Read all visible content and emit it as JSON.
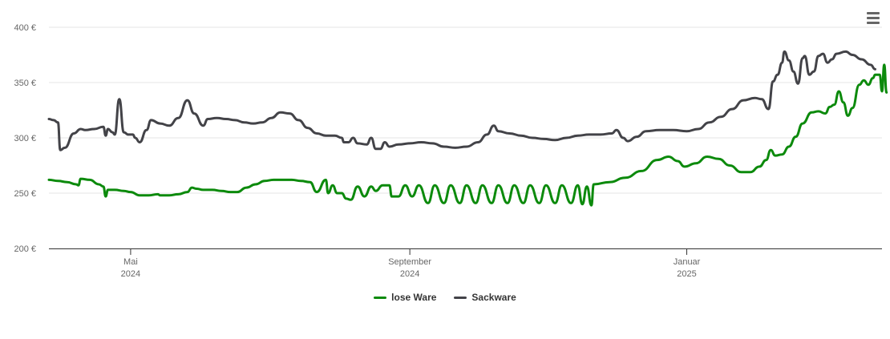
{
  "chart_data": {
    "type": "line",
    "title": "",
    "xlabel": "",
    "ylabel": "",
    "ylim": [
      200,
      400
    ],
    "y_ticks": [
      {
        "value": 200,
        "label": "200 €"
      },
      {
        "value": 250,
        "label": "250 €"
      },
      {
        "value": 300,
        "label": "300 €"
      },
      {
        "value": 350,
        "label": "350 €"
      },
      {
        "value": 400,
        "label": "400 €"
      }
    ],
    "x_range": [
      "2024-03-26",
      "2025-03-28"
    ],
    "x_ticks": [
      {
        "date": "2024-05-01",
        "month": "Mai",
        "year": "2024"
      },
      {
        "date": "2024-09-01",
        "month": "September",
        "year": "2024"
      },
      {
        "date": "2025-01-01",
        "month": "Januar",
        "year": "2025"
      }
    ],
    "grid": true,
    "legend_position": "bottom",
    "series": [
      {
        "name": "lose Ware",
        "color": "#0c8a0c",
        "points": [
          [
            "2024-03-26",
            262
          ],
          [
            "2024-03-30",
            261
          ],
          [
            "2024-04-03",
            260
          ],
          [
            "2024-04-07",
            258
          ],
          [
            "2024-04-08",
            257
          ],
          [
            "2024-04-09",
            263
          ],
          [
            "2024-04-13",
            262
          ],
          [
            "2024-04-17",
            258
          ],
          [
            "2024-04-19",
            256
          ],
          [
            "2024-04-20",
            247
          ],
          [
            "2024-04-21",
            253
          ],
          [
            "2024-04-24",
            253
          ],
          [
            "2024-04-28",
            252
          ],
          [
            "2024-05-01",
            251
          ],
          [
            "2024-05-05",
            248
          ],
          [
            "2024-05-09",
            248
          ],
          [
            "2024-05-13",
            249
          ],
          [
            "2024-05-14",
            248
          ],
          [
            "2024-05-18",
            248
          ],
          [
            "2024-05-22",
            249
          ],
          [
            "2024-05-26",
            251
          ],
          [
            "2024-05-28",
            255
          ],
          [
            "2024-05-30",
            254
          ],
          [
            "2024-06-02",
            253
          ],
          [
            "2024-06-06",
            253
          ],
          [
            "2024-06-10",
            252
          ],
          [
            "2024-06-14",
            251
          ],
          [
            "2024-06-17",
            251
          ],
          [
            "2024-06-21",
            255
          ],
          [
            "2024-06-25",
            258
          ],
          [
            "2024-06-29",
            261
          ],
          [
            "2024-07-03",
            262
          ],
          [
            "2024-07-07",
            262
          ],
          [
            "2024-07-11",
            262
          ],
          [
            "2024-07-15",
            261
          ],
          [
            "2024-07-19",
            260
          ],
          [
            "2024-07-22",
            251
          ],
          [
            "2024-07-26",
            262
          ],
          [
            "2024-07-27",
            250
          ],
          [
            "2024-07-29",
            257
          ],
          [
            "2024-07-31",
            250
          ],
          [
            "2024-08-02",
            250
          ],
          [
            "2024-08-04",
            245
          ],
          [
            "2024-08-06",
            244
          ],
          [
            "2024-08-09",
            256
          ],
          [
            "2024-08-12",
            247
          ],
          [
            "2024-08-15",
            256
          ],
          [
            "2024-08-17",
            252
          ],
          [
            "2024-08-20",
            257
          ],
          [
            "2024-08-23",
            257
          ],
          [
            "2024-08-24",
            247
          ],
          [
            "2024-08-27",
            247
          ],
          [
            "2024-08-30",
            257
          ],
          [
            "2024-09-02",
            247
          ],
          [
            "2024-09-05",
            257
          ],
          [
            "2024-09-09",
            241
          ],
          [
            "2024-09-12",
            257
          ],
          [
            "2024-09-16",
            241
          ],
          [
            "2024-09-19",
            257
          ],
          [
            "2024-09-23",
            241
          ],
          [
            "2024-09-26",
            257
          ],
          [
            "2024-09-30",
            241
          ],
          [
            "2024-10-03",
            257
          ],
          [
            "2024-10-07",
            241
          ],
          [
            "2024-10-10",
            257
          ],
          [
            "2024-10-14",
            241
          ],
          [
            "2024-10-17",
            257
          ],
          [
            "2024-10-21",
            241
          ],
          [
            "2024-10-24",
            257
          ],
          [
            "2024-10-28",
            241
          ],
          [
            "2024-10-31",
            257
          ],
          [
            "2024-11-04",
            241
          ],
          [
            "2024-11-07",
            257
          ],
          [
            "2024-11-11",
            241
          ],
          [
            "2024-11-14",
            257
          ],
          [
            "2024-11-16",
            240
          ],
          [
            "2024-11-18",
            256
          ],
          [
            "2024-11-20",
            239
          ],
          [
            "2024-11-21",
            258
          ],
          [
            "2024-11-28",
            260
          ],
          [
            "2024-12-05",
            264
          ],
          [
            "2024-12-12",
            270
          ],
          [
            "2024-12-19",
            280
          ],
          [
            "2024-12-24",
            283
          ],
          [
            "2024-12-28",
            279
          ],
          [
            "2024-12-31",
            274
          ],
          [
            "2025-01-05",
            277
          ],
          [
            "2025-01-10",
            283
          ],
          [
            "2025-01-15",
            281
          ],
          [
            "2025-01-20",
            275
          ],
          [
            "2025-01-25",
            269
          ],
          [
            "2025-01-29",
            269
          ],
          [
            "2025-02-02",
            274
          ],
          [
            "2025-02-05",
            280
          ],
          [
            "2025-02-07",
            289
          ],
          [
            "2025-02-09",
            284
          ],
          [
            "2025-02-12",
            285
          ],
          [
            "2025-02-15",
            292
          ],
          [
            "2025-02-18",
            301
          ],
          [
            "2025-02-21",
            313
          ],
          [
            "2025-02-25",
            323
          ],
          [
            "2025-02-28",
            324
          ],
          [
            "2025-03-03",
            322
          ],
          [
            "2025-03-05",
            328
          ],
          [
            "2025-03-07",
            330
          ],
          [
            "2025-03-09",
            342
          ],
          [
            "2025-03-11",
            332
          ],
          [
            "2025-03-13",
            320
          ],
          [
            "2025-03-15",
            327
          ],
          [
            "2025-03-18",
            348
          ],
          [
            "2025-03-20",
            352
          ],
          [
            "2025-03-22",
            348
          ],
          [
            "2025-03-24",
            354
          ],
          [
            "2025-03-25",
            357
          ],
          [
            "2025-03-27",
            357
          ],
          [
            "2025-03-28",
            342
          ],
          [
            "2025-03-29",
            366
          ],
          [
            "2025-03-30",
            341
          ]
        ]
      },
      {
        "name": "Sackware",
        "color": "#434348",
        "points": [
          [
            "2024-03-26",
            317
          ],
          [
            "2024-03-28",
            316
          ],
          [
            "2024-03-30",
            314
          ],
          [
            "2024-03-31",
            289
          ],
          [
            "2024-04-02",
            291
          ],
          [
            "2024-04-06",
            304
          ],
          [
            "2024-04-09",
            308
          ],
          [
            "2024-04-11",
            307
          ],
          [
            "2024-04-15",
            308
          ],
          [
            "2024-04-19",
            310
          ],
          [
            "2024-04-20",
            302
          ],
          [
            "2024-04-21",
            308
          ],
          [
            "2024-04-23",
            305
          ],
          [
            "2024-04-24",
            303
          ],
          [
            "2024-04-26",
            335
          ],
          [
            "2024-04-28",
            305
          ],
          [
            "2024-04-30",
            303
          ],
          [
            "2024-05-02",
            303
          ],
          [
            "2024-05-03",
            300
          ],
          [
            "2024-05-05",
            296
          ],
          [
            "2024-05-08",
            307
          ],
          [
            "2024-05-10",
            316
          ],
          [
            "2024-05-14",
            313
          ],
          [
            "2024-05-18",
            311
          ],
          [
            "2024-05-22",
            318
          ],
          [
            "2024-05-26",
            334
          ],
          [
            "2024-05-29",
            322
          ],
          [
            "2024-06-02",
            311
          ],
          [
            "2024-06-04",
            317
          ],
          [
            "2024-06-08",
            318
          ],
          [
            "2024-06-12",
            317
          ],
          [
            "2024-06-16",
            316
          ],
          [
            "2024-06-20",
            314
          ],
          [
            "2024-06-24",
            313
          ],
          [
            "2024-06-28",
            314
          ],
          [
            "2024-07-02",
            318
          ],
          [
            "2024-07-06",
            323
          ],
          [
            "2024-07-10",
            322
          ],
          [
            "2024-07-14",
            316
          ],
          [
            "2024-07-18",
            309
          ],
          [
            "2024-07-22",
            304
          ],
          [
            "2024-07-26",
            302
          ],
          [
            "2024-07-30",
            302
          ],
          [
            "2024-08-02",
            300
          ],
          [
            "2024-08-03",
            296
          ],
          [
            "2024-08-05",
            296
          ],
          [
            "2024-08-07",
            300
          ],
          [
            "2024-08-09",
            295
          ],
          [
            "2024-08-13",
            294
          ],
          [
            "2024-08-15",
            300
          ],
          [
            "2024-08-17",
            290
          ],
          [
            "2024-08-19",
            290
          ],
          [
            "2024-08-21",
            296
          ],
          [
            "2024-08-23",
            292
          ],
          [
            "2024-08-27",
            294
          ],
          [
            "2024-09-01",
            295
          ],
          [
            "2024-09-06",
            296
          ],
          [
            "2024-09-11",
            295
          ],
          [
            "2024-09-16",
            292
          ],
          [
            "2024-09-21",
            291
          ],
          [
            "2024-09-26",
            292
          ],
          [
            "2024-10-01",
            296
          ],
          [
            "2024-10-05",
            303
          ],
          [
            "2024-10-08",
            311
          ],
          [
            "2024-10-10",
            306
          ],
          [
            "2024-10-15",
            304
          ],
          [
            "2024-10-20",
            302
          ],
          [
            "2024-10-25",
            300
          ],
          [
            "2024-10-30",
            299
          ],
          [
            "2024-11-04",
            298
          ],
          [
            "2024-11-09",
            300
          ],
          [
            "2024-11-14",
            302
          ],
          [
            "2024-11-19",
            303
          ],
          [
            "2024-11-24",
            303
          ],
          [
            "2024-11-29",
            304
          ],
          [
            "2024-12-01",
            307
          ],
          [
            "2024-12-04",
            300
          ],
          [
            "2024-12-06",
            297
          ],
          [
            "2024-12-10",
            301
          ],
          [
            "2024-12-14",
            306
          ],
          [
            "2024-12-20",
            307
          ],
          [
            "2024-12-26",
            307
          ],
          [
            "2025-01-01",
            306
          ],
          [
            "2025-01-06",
            308
          ],
          [
            "2025-01-11",
            314
          ],
          [
            "2025-01-16",
            319
          ],
          [
            "2025-01-21",
            326
          ],
          [
            "2025-01-26",
            334
          ],
          [
            "2025-01-31",
            336
          ],
          [
            "2025-02-03",
            335
          ],
          [
            "2025-02-06",
            326
          ],
          [
            "2025-02-08",
            351
          ],
          [
            "2025-02-10",
            357
          ],
          [
            "2025-02-12",
            368
          ],
          [
            "2025-02-13",
            378
          ],
          [
            "2025-02-15",
            370
          ],
          [
            "2025-02-17",
            360
          ],
          [
            "2025-02-19",
            349
          ],
          [
            "2025-02-21",
            372
          ],
          [
            "2025-02-22",
            374
          ],
          [
            "2025-02-24",
            357
          ],
          [
            "2025-02-26",
            360
          ],
          [
            "2025-02-28",
            374
          ],
          [
            "2025-03-02",
            376
          ],
          [
            "2025-03-04",
            368
          ],
          [
            "2025-03-06",
            371
          ],
          [
            "2025-03-08",
            376
          ],
          [
            "2025-03-12",
            378
          ],
          [
            "2025-03-15",
            375
          ],
          [
            "2025-03-19",
            371
          ],
          [
            "2025-03-23",
            366
          ],
          [
            "2025-03-25",
            362
          ]
        ]
      }
    ]
  },
  "menu": {
    "icon": "hamburger-menu-icon"
  }
}
